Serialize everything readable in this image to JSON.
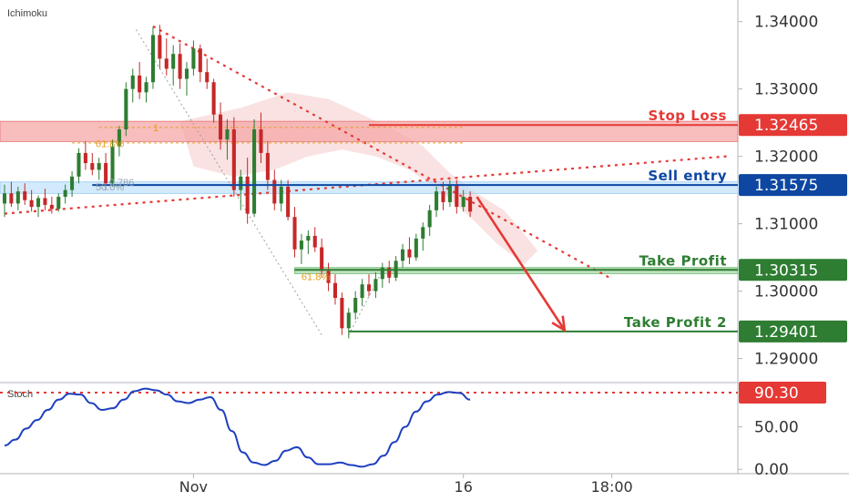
{
  "header": {
    "indicator_label": "Ichimoku"
  },
  "colors": {
    "bull": "#2e7d32",
    "bear": "#c62828",
    "stop": "#e53935",
    "entry": "#0d47a1",
    "tp": "#2e7d32",
    "fib": "#e59b1e",
    "stoch": "#1e3fbf",
    "cloud": "#f8d8d8"
  },
  "chart_data": {
    "type": "candlestick",
    "symbol_indicator": "Ichimoku",
    "y_axis": {
      "ylim": [
        1.2867,
        1.3432
      ],
      "ticks": [
        "1.34000",
        "1.33000",
        "1.32000",
        "1.31000",
        "1.30000",
        "1.29000"
      ],
      "tick_values": [
        1.34,
        1.33,
        1.32,
        1.31,
        1.3,
        1.29
      ]
    },
    "x_axis": {
      "xlim": [
        0,
        108
      ],
      "tick_labels": [
        "Nov",
        "16",
        "18:00"
      ],
      "tick_positions": [
        28,
        68,
        90
      ]
    },
    "levels": [
      {
        "name": "Stop Loss",
        "value": 1.32465,
        "badge": "1.32465",
        "color": "#e53935"
      },
      {
        "name": "Sell entry",
        "value": 1.31575,
        "badge": "1.31575",
        "color": "#0d47a1"
      },
      {
        "name": "Take Profit",
        "value": 1.30315,
        "badge": "1.30315",
        "color": "#2e7d32"
      },
      {
        "name": "Take Profit 2",
        "value": 1.29401,
        "badge": "1.29401",
        "color": "#2e7d32"
      }
    ],
    "zones": [
      {
        "name": "stop-zone",
        "top": 1.3252,
        "bottom": 1.3222
      },
      {
        "name": "entry-zone",
        "top": 1.3162,
        "bottom": 1.3145
      },
      {
        "name": "tp-zone",
        "top": 1.3035,
        "bottom": 1.3026
      }
    ],
    "fib_labels": [
      {
        "text": "1",
        "x": 22,
        "y": 1.3243
      },
      {
        "text": "61.8%",
        "x": 13.5,
        "y": 1.3219
      },
      {
        "text": "0.786",
        "x": 15.5,
        "y": 1.3162
      },
      {
        "text": "50.0%",
        "x": 13.5,
        "y": 1.3155
      },
      {
        "text": "61.8%",
        "x": 44,
        "y": 1.3022
      }
    ],
    "candles": [
      [
        0,
        1.313,
        1.3158,
        1.311,
        1.3145
      ],
      [
        1,
        1.3145,
        1.3162,
        1.3125,
        1.313
      ],
      [
        2,
        1.313,
        1.3155,
        1.312,
        1.3148
      ],
      [
        3,
        1.3148,
        1.316,
        1.3128,
        1.3135
      ],
      [
        4,
        1.3135,
        1.315,
        1.3118,
        1.3125
      ],
      [
        5,
        1.3125,
        1.3142,
        1.311,
        1.3138
      ],
      [
        6,
        1.3138,
        1.3152,
        1.312,
        1.3128
      ],
      [
        7,
        1.3128,
        1.314,
        1.3115,
        1.3122
      ],
      [
        8,
        1.3122,
        1.3145,
        1.3118,
        1.314
      ],
      [
        9,
        1.314,
        1.3158,
        1.313,
        1.315
      ],
      [
        10,
        1.315,
        1.3178,
        1.314,
        1.317
      ],
      [
        11,
        1.317,
        1.3212,
        1.316,
        1.3205
      ],
      [
        12,
        1.3205,
        1.3222,
        1.318,
        1.319
      ],
      [
        13,
        1.319,
        1.3205,
        1.3172,
        1.318
      ],
      [
        14,
        1.318,
        1.3198,
        1.3165,
        1.319
      ],
      [
        15,
        1.319,
        1.3205,
        1.315,
        1.316
      ],
      [
        16,
        1.316,
        1.3225,
        1.3155,
        1.3215
      ],
      [
        17,
        1.3215,
        1.3245,
        1.32,
        1.324
      ],
      [
        18,
        1.324,
        1.331,
        1.323,
        1.33
      ],
      [
        19,
        1.33,
        1.333,
        1.328,
        1.332
      ],
      [
        20,
        1.332,
        1.334,
        1.3285,
        1.3295
      ],
      [
        21,
        1.3295,
        1.3318,
        1.328,
        1.331
      ],
      [
        22,
        1.331,
        1.3392,
        1.33,
        1.338
      ],
      [
        23,
        1.338,
        1.3395,
        1.333,
        1.3345
      ],
      [
        24,
        1.3345,
        1.3375,
        1.332,
        1.333
      ],
      [
        25,
        1.333,
        1.3365,
        1.3305,
        1.3352
      ],
      [
        26,
        1.3352,
        1.3368,
        1.33,
        1.3315
      ],
      [
        27,
        1.3315,
        1.334,
        1.329,
        1.333
      ],
      [
        28,
        1.333,
        1.3372,
        1.332,
        1.336
      ],
      [
        29,
        1.336,
        1.3366,
        1.331,
        1.3325
      ],
      [
        30,
        1.3325,
        1.3345,
        1.33,
        1.331
      ],
      [
        31,
        1.331,
        1.3315,
        1.325,
        1.3262
      ],
      [
        32,
        1.3262,
        1.328,
        1.321,
        1.3225
      ],
      [
        33,
        1.3225,
        1.3255,
        1.3195,
        1.324
      ],
      [
        34,
        1.324,
        1.3258,
        1.314,
        1.315
      ],
      [
        35,
        1.315,
        1.318,
        1.312,
        1.317
      ],
      [
        36,
        1.317,
        1.3198,
        1.31,
        1.3115
      ],
      [
        37,
        1.3115,
        1.3255,
        1.311,
        1.324
      ],
      [
        38,
        1.324,
        1.3265,
        1.319,
        1.3205
      ],
      [
        39,
        1.3205,
        1.3222,
        1.315,
        1.3165
      ],
      [
        40,
        1.3165,
        1.318,
        1.312,
        1.313
      ],
      [
        41,
        1.313,
        1.3165,
        1.3118,
        1.3155
      ],
      [
        42,
        1.3155,
        1.3165,
        1.3105,
        1.311
      ],
      [
        43,
        1.311,
        1.3125,
        1.305,
        1.3062
      ],
      [
        44,
        1.3062,
        1.3085,
        1.304,
        1.3075
      ],
      [
        45,
        1.3075,
        1.309,
        1.3055,
        1.3082
      ],
      [
        46,
        1.3082,
        1.3095,
        1.3058,
        1.3065
      ],
      [
        47,
        1.3065,
        1.3078,
        1.302,
        1.303
      ],
      [
        48,
        1.303,
        1.3042,
        1.3,
        1.3012
      ],
      [
        49,
        1.3012,
        1.3025,
        1.298,
        1.299
      ],
      [
        50,
        1.299,
        1.2998,
        1.2935,
        1.2945
      ],
      [
        51,
        1.2945,
        1.2975,
        1.293,
        1.2968
      ],
      [
        52,
        1.2968,
        1.3,
        1.2958,
        1.299
      ],
      [
        53,
        1.299,
        1.3018,
        1.2978,
        1.301
      ],
      [
        54,
        1.301,
        1.3025,
        1.2992,
        1.3
      ],
      [
        55,
        1.3,
        1.3028,
        1.299,
        1.3018
      ],
      [
        56,
        1.3018,
        1.3042,
        1.3005,
        1.3035
      ],
      [
        57,
        1.3035,
        1.3045,
        1.3012,
        1.302
      ],
      [
        58,
        1.302,
        1.3052,
        1.3015,
        1.3045
      ],
      [
        59,
        1.3045,
        1.307,
        1.3035,
        1.3062
      ],
      [
        60,
        1.3062,
        1.308,
        1.304,
        1.305
      ],
      [
        61,
        1.305,
        1.3085,
        1.3045,
        1.3078
      ],
      [
        62,
        1.3078,
        1.3102,
        1.306,
        1.3095
      ],
      [
        63,
        1.3095,
        1.3128,
        1.3082,
        1.312
      ],
      [
        64,
        1.312,
        1.3155,
        1.311,
        1.3148
      ],
      [
        65,
        1.3148,
        1.3162,
        1.312,
        1.3132
      ],
      [
        66,
        1.3132,
        1.3165,
        1.3125,
        1.3158
      ],
      [
        67,
        1.3158,
        1.3165,
        1.3115,
        1.3125
      ],
      [
        68,
        1.3125,
        1.315,
        1.3118,
        1.314
      ],
      [
        69,
        1.314,
        1.3148,
        1.311,
        1.3118
      ]
    ],
    "stochastic": {
      "label": "Stoch",
      "current_value": "90.30",
      "overbought_line": 90.3,
      "ylim": [
        -3,
        100
      ],
      "ticks": [
        "50.00",
        "0.00"
      ],
      "tick_values": [
        50,
        0
      ],
      "values": [
        28,
        35,
        48,
        58,
        70,
        82,
        89,
        88,
        78,
        70,
        72,
        82,
        92,
        95,
        93,
        88,
        80,
        78,
        82,
        85,
        70,
        45,
        20,
        8,
        5,
        10,
        22,
        26,
        14,
        6,
        6,
        8,
        5,
        3,
        6,
        16,
        32,
        50,
        68,
        80,
        88,
        91,
        90,
        82
      ]
    },
    "arrow": {
      "from": [
        70,
        1.314
      ],
      "to": [
        83,
        1.2942
      ]
    }
  }
}
